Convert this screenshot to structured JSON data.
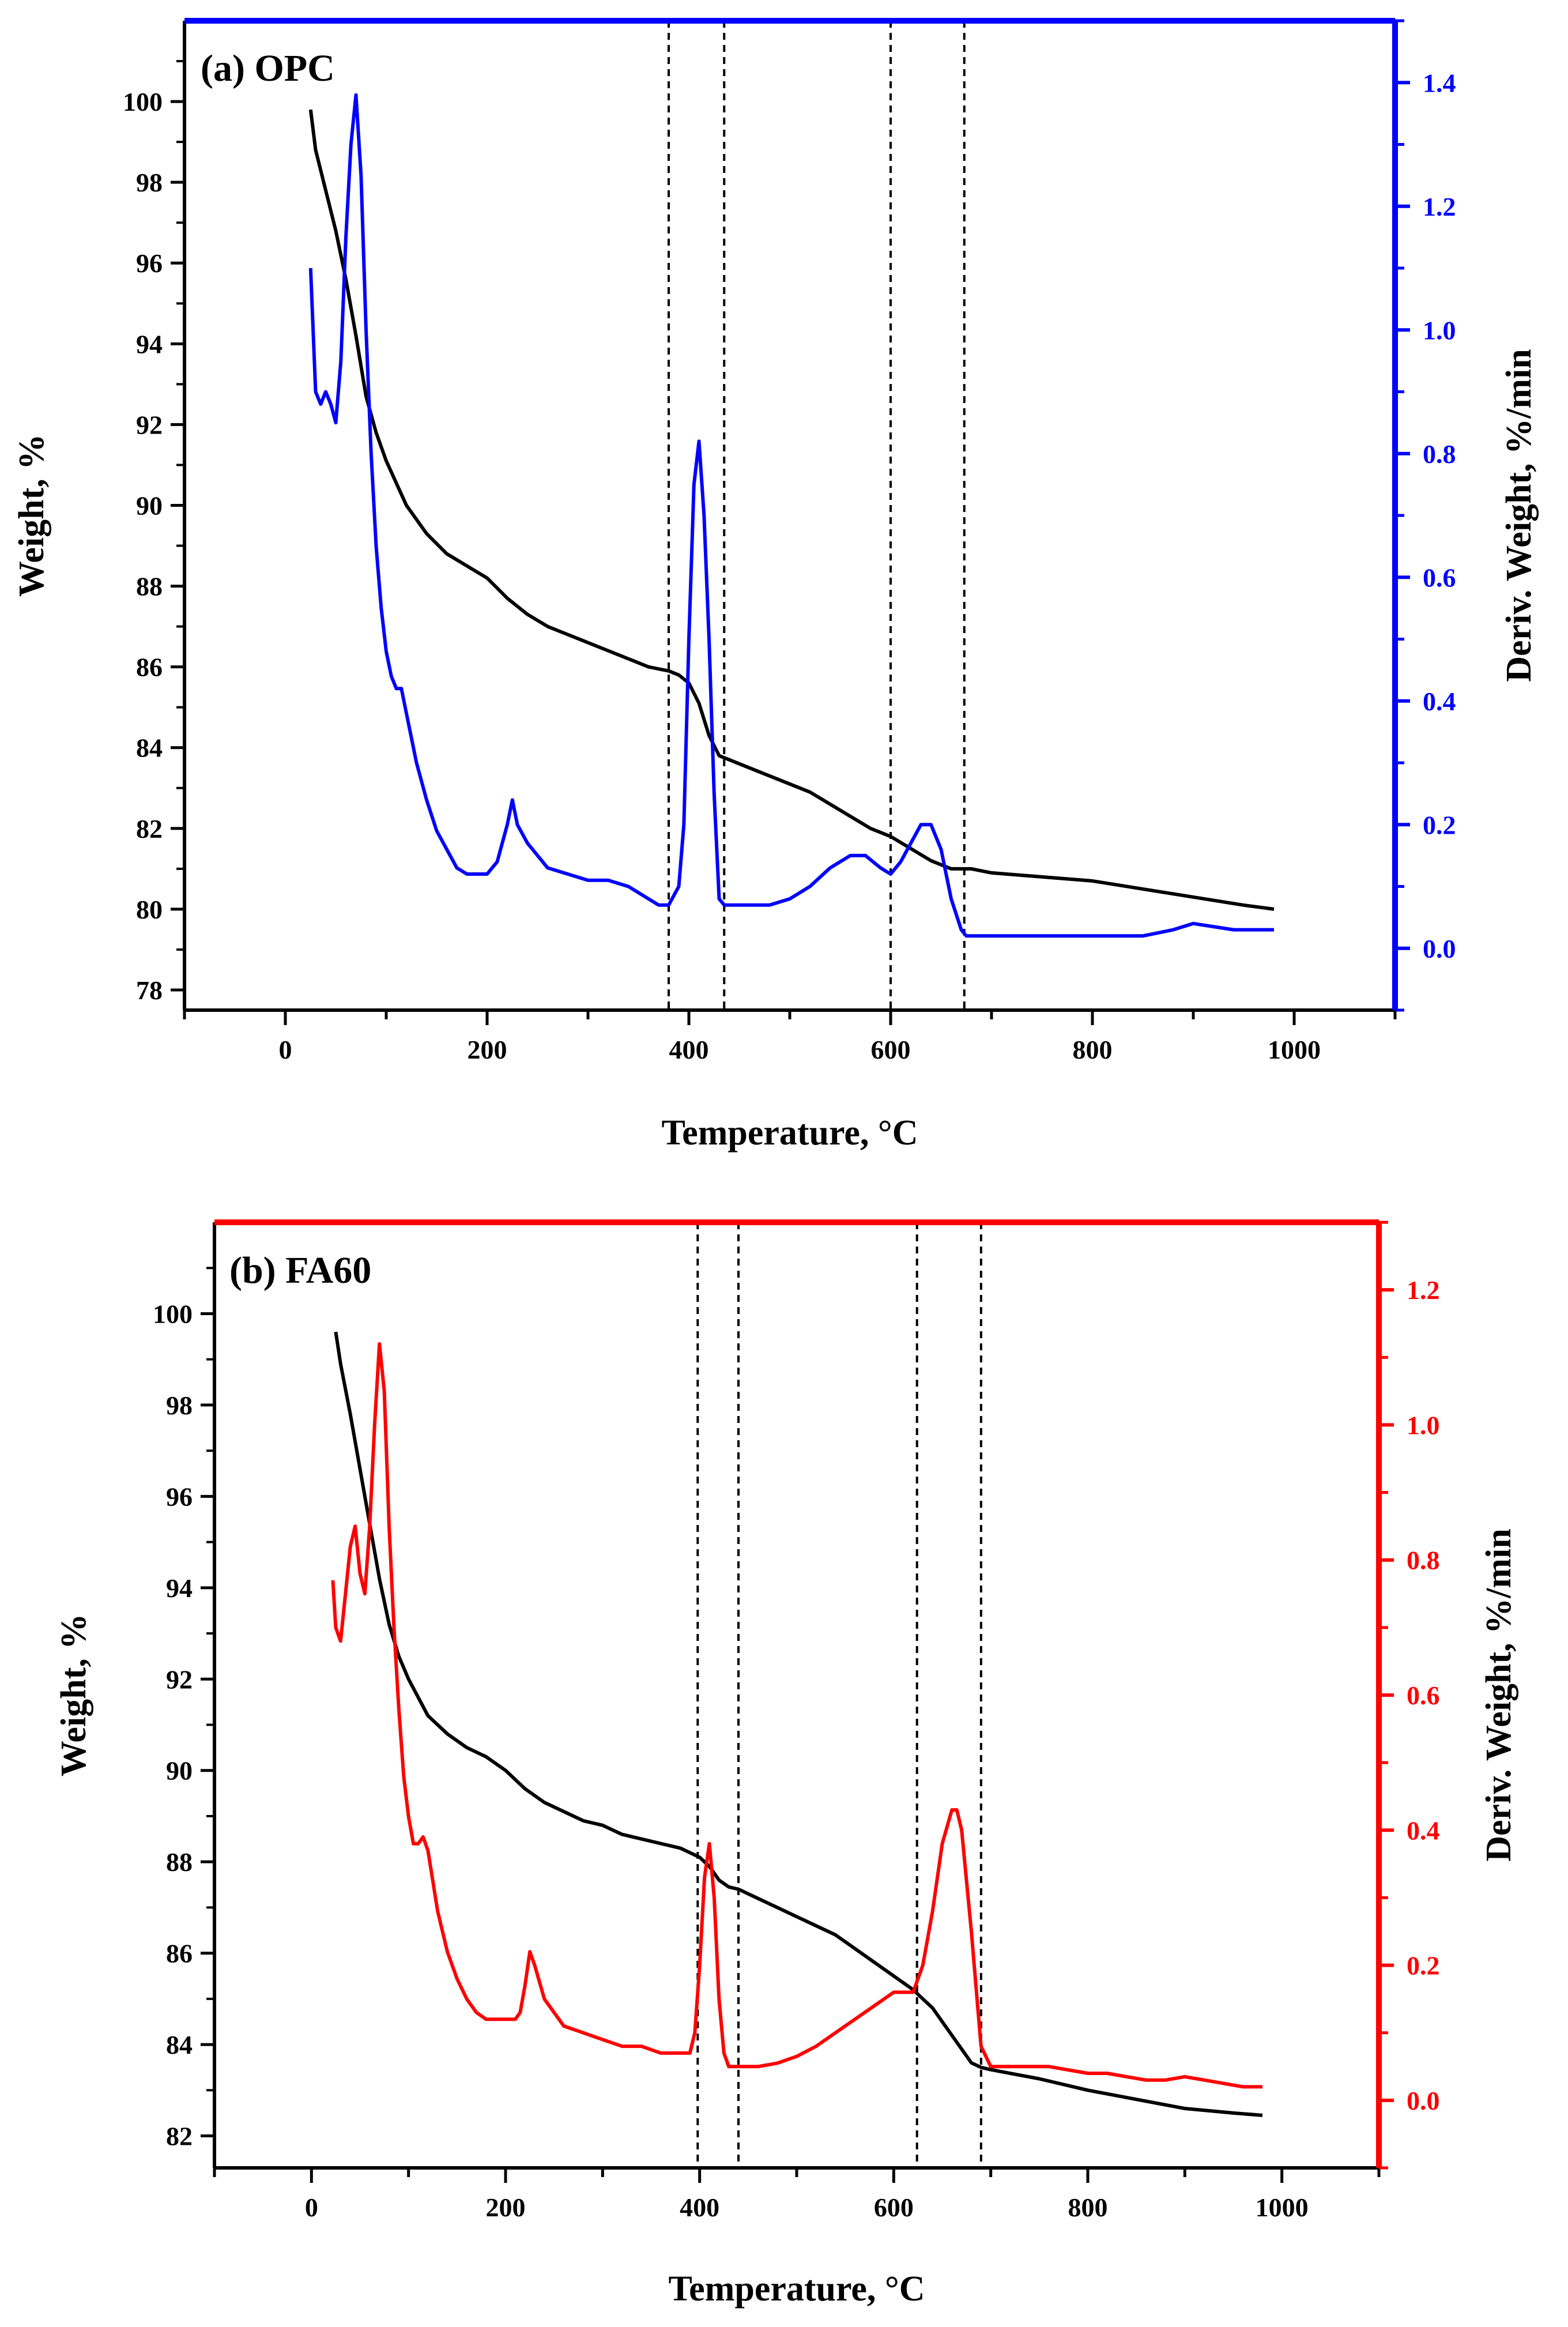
{
  "chart_data": [
    {
      "type": "line",
      "panel_label": "(a) OPC",
      "xlabel": "Temperature, °C",
      "ylabel": "Weight, %",
      "y2label": "Deriv. Weight, %/min",
      "xlim": [
        -100,
        1100
      ],
      "ylim": [
        77.5,
        102
      ],
      "y2lim": [
        -0.1,
        1.5
      ],
      "xticks": [
        0,
        200,
        400,
        600,
        800,
        1000
      ],
      "yticks": [
        78,
        80,
        82,
        84,
        86,
        88,
        90,
        92,
        94,
        96,
        98,
        100
      ],
      "y2ticks": [
        0.0,
        0.2,
        0.4,
        0.6,
        0.8,
        1.0,
        1.2,
        1.4
      ],
      "y2_color": "#0000ff",
      "dashed_lines_x": [
        380,
        435,
        600,
        673
      ],
      "series": [
        {
          "name": "Weight",
          "axis": "left",
          "color": "#000000",
          "x": [
            25,
            30,
            40,
            50,
            60,
            70,
            80,
            90,
            100,
            120,
            140,
            160,
            180,
            200,
            220,
            240,
            260,
            280,
            300,
            320,
            340,
            360,
            380,
            390,
            400,
            410,
            420,
            430,
            440,
            460,
            480,
            500,
            520,
            540,
            560,
            580,
            600,
            620,
            640,
            660,
            680,
            700,
            750,
            800,
            850,
            900,
            950,
            980
          ],
          "y": [
            99.8,
            98.8,
            97.8,
            96.8,
            95.6,
            94.2,
            92.7,
            91.8,
            91.1,
            90.0,
            89.3,
            88.8,
            88.5,
            88.2,
            87.7,
            87.3,
            87.0,
            86.8,
            86.6,
            86.4,
            86.2,
            86.0,
            85.9,
            85.8,
            85.6,
            85.1,
            84.3,
            83.8,
            83.7,
            83.5,
            83.3,
            83.1,
            82.9,
            82.6,
            82.3,
            82.0,
            81.8,
            81.5,
            81.2,
            81.0,
            81.0,
            80.9,
            80.8,
            80.7,
            80.5,
            80.3,
            80.1,
            80.0
          ]
        },
        {
          "name": "Deriv. Weight",
          "axis": "right",
          "color": "#0000ff",
          "x": [
            25,
            30,
            35,
            40,
            45,
            50,
            55,
            60,
            65,
            70,
            75,
            80,
            85,
            90,
            95,
            100,
            105,
            110,
            115,
            120,
            130,
            140,
            150,
            160,
            170,
            180,
            190,
            200,
            210,
            220,
            225,
            230,
            240,
            250,
            260,
            280,
            300,
            320,
            340,
            350,
            360,
            370,
            380,
            390,
            395,
            400,
            405,
            410,
            415,
            420,
            425,
            430,
            435,
            440,
            460,
            480,
            500,
            520,
            540,
            560,
            575,
            590,
            600,
            610,
            620,
            630,
            640,
            650,
            660,
            670,
            675,
            690,
            720,
            760,
            800,
            850,
            880,
            900,
            940,
            980
          ],
          "y": [
            1.1,
            0.9,
            0.88,
            0.9,
            0.88,
            0.85,
            0.95,
            1.15,
            1.3,
            1.38,
            1.25,
            1.0,
            0.8,
            0.65,
            0.55,
            0.48,
            0.44,
            0.42,
            0.42,
            0.38,
            0.3,
            0.24,
            0.19,
            0.16,
            0.13,
            0.12,
            0.12,
            0.12,
            0.14,
            0.2,
            0.24,
            0.2,
            0.17,
            0.15,
            0.13,
            0.12,
            0.11,
            0.11,
            0.1,
            0.09,
            0.08,
            0.07,
            0.07,
            0.1,
            0.2,
            0.5,
            0.75,
            0.82,
            0.7,
            0.5,
            0.25,
            0.08,
            0.07,
            0.07,
            0.07,
            0.07,
            0.08,
            0.1,
            0.13,
            0.15,
            0.15,
            0.13,
            0.12,
            0.14,
            0.17,
            0.2,
            0.2,
            0.16,
            0.08,
            0.03,
            0.02,
            0.02,
            0.02,
            0.02,
            0.02,
            0.02,
            0.03,
            0.04,
            0.03,
            0.03
          ]
        }
      ]
    },
    {
      "type": "line",
      "panel_label": "(b) FA60",
      "xlabel": "Temperature, °C",
      "ylabel": "Weight, %",
      "y2label": "Deriv. Weight, %/min",
      "xlim": [
        -100,
        1100
      ],
      "ylim": [
        81.3,
        102
      ],
      "y2lim": [
        -0.1,
        1.3
      ],
      "xticks": [
        0,
        200,
        400,
        600,
        800,
        1000
      ],
      "yticks": [
        82,
        84,
        86,
        88,
        90,
        92,
        94,
        96,
        98,
        100
      ],
      "y2ticks": [
        0.0,
        0.2,
        0.4,
        0.6,
        0.8,
        1.0,
        1.2
      ],
      "y2_color": "#ff0000",
      "dashed_lines_x": [
        398,
        440,
        624,
        690
      ],
      "series": [
        {
          "name": "Weight",
          "axis": "left",
          "color": "#000000",
          "x": [
            25,
            30,
            40,
            50,
            60,
            70,
            80,
            90,
            100,
            120,
            140,
            160,
            180,
            200,
            220,
            240,
            260,
            280,
            300,
            320,
            340,
            360,
            380,
            390,
            400,
            410,
            420,
            430,
            440,
            460,
            480,
            500,
            520,
            540,
            560,
            580,
            600,
            620,
            630,
            640,
            650,
            660,
            670,
            680,
            690,
            700,
            750,
            800,
            850,
            900,
            950,
            980
          ],
          "y": [
            99.6,
            98.9,
            97.8,
            96.6,
            95.4,
            94.2,
            93.2,
            92.5,
            92.0,
            91.2,
            90.8,
            90.5,
            90.3,
            90.0,
            89.6,
            89.3,
            89.1,
            88.9,
            88.8,
            88.6,
            88.5,
            88.4,
            88.3,
            88.2,
            88.1,
            87.9,
            87.6,
            87.45,
            87.4,
            87.2,
            87.0,
            86.8,
            86.6,
            86.4,
            86.1,
            85.8,
            85.5,
            85.2,
            85.0,
            84.8,
            84.5,
            84.2,
            83.9,
            83.6,
            83.5,
            83.45,
            83.25,
            83.0,
            82.8,
            82.6,
            82.5,
            82.45
          ]
        },
        {
          "name": "Deriv. Weight",
          "axis": "right",
          "color": "#ff0000",
          "x": [
            22,
            25,
            30,
            35,
            40,
            45,
            50,
            55,
            60,
            65,
            70,
            75,
            80,
            85,
            90,
            95,
            100,
            105,
            110,
            115,
            120,
            130,
            140,
            150,
            160,
            170,
            180,
            190,
            200,
            210,
            215,
            220,
            225,
            230,
            240,
            250,
            260,
            280,
            300,
            320,
            340,
            360,
            380,
            390,
            395,
            400,
            405,
            410,
            415,
            420,
            425,
            430,
            435,
            440,
            460,
            480,
            500,
            520,
            540,
            560,
            580,
            600,
            610,
            620,
            630,
            640,
            650,
            660,
            665,
            670,
            680,
            690,
            700,
            720,
            760,
            800,
            820,
            840,
            860,
            880,
            900,
            920,
            940,
            960,
            980
          ],
          "y": [
            0.77,
            0.7,
            0.68,
            0.75,
            0.82,
            0.85,
            0.78,
            0.75,
            0.85,
            1.0,
            1.12,
            1.05,
            0.85,
            0.7,
            0.58,
            0.48,
            0.42,
            0.38,
            0.38,
            0.39,
            0.37,
            0.28,
            0.22,
            0.18,
            0.15,
            0.13,
            0.12,
            0.12,
            0.12,
            0.12,
            0.13,
            0.17,
            0.22,
            0.2,
            0.15,
            0.13,
            0.11,
            0.1,
            0.09,
            0.08,
            0.08,
            0.07,
            0.07,
            0.07,
            0.1,
            0.2,
            0.33,
            0.38,
            0.3,
            0.15,
            0.07,
            0.05,
            0.05,
            0.05,
            0.05,
            0.055,
            0.065,
            0.08,
            0.1,
            0.12,
            0.14,
            0.16,
            0.16,
            0.16,
            0.2,
            0.28,
            0.38,
            0.43,
            0.43,
            0.4,
            0.25,
            0.08,
            0.05,
            0.05,
            0.05,
            0.04,
            0.04,
            0.035,
            0.03,
            0.03,
            0.035,
            0.03,
            0.025,
            0.02,
            0.02
          ]
        }
      ]
    }
  ]
}
